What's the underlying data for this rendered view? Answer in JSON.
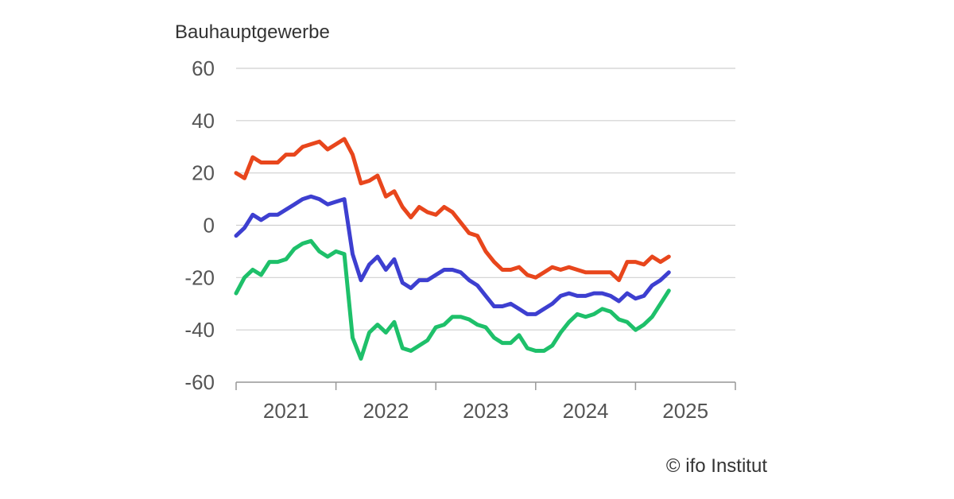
{
  "chart_data": {
    "type": "line",
    "title": "Bauhauptgewerbe",
    "xlabel": "",
    "ylabel": "",
    "ylim": [
      -60,
      60
    ],
    "yticks": [
      60,
      40,
      20,
      0,
      -20,
      -40,
      -60
    ],
    "xlim": [
      "2021-01",
      "2026-01"
    ],
    "xtick_labels": [
      "2021",
      "2022",
      "2023",
      "2024",
      "2025"
    ],
    "grid": true,
    "legend": "none",
    "series": [
      {
        "color": "#e8461c",
        "points": [
          [
            "2021-01",
            20
          ],
          [
            "2021-02",
            18
          ],
          [
            "2021-03",
            26
          ],
          [
            "2021-04",
            24
          ],
          [
            "2021-05",
            24
          ],
          [
            "2021-06",
            24
          ],
          [
            "2021-07",
            27
          ],
          [
            "2021-08",
            27
          ],
          [
            "2021-09",
            30
          ],
          [
            "2021-10",
            31
          ],
          [
            "2021-11",
            32
          ],
          [
            "2021-12",
            29
          ],
          [
            "2022-01",
            31
          ],
          [
            "2022-02",
            33
          ],
          [
            "2022-03",
            27
          ],
          [
            "2022-04",
            16
          ],
          [
            "2022-05",
            17
          ],
          [
            "2022-06",
            19
          ],
          [
            "2022-07",
            11
          ],
          [
            "2022-08",
            13
          ],
          [
            "2022-09",
            7
          ],
          [
            "2022-10",
            3
          ],
          [
            "2022-11",
            7
          ],
          [
            "2022-12",
            5
          ],
          [
            "2023-01",
            4
          ],
          [
            "2023-02",
            7
          ],
          [
            "2023-03",
            5
          ],
          [
            "2023-04",
            1
          ],
          [
            "2023-05",
            -3
          ],
          [
            "2023-06",
            -4
          ],
          [
            "2023-07",
            -10
          ],
          [
            "2023-08",
            -14
          ],
          [
            "2023-09",
            -17
          ],
          [
            "2023-10",
            -17
          ],
          [
            "2023-11",
            -16
          ],
          [
            "2023-12",
            -19
          ],
          [
            "2024-01",
            -20
          ],
          [
            "2024-02",
            -18
          ],
          [
            "2024-03",
            -16
          ],
          [
            "2024-04",
            -17
          ],
          [
            "2024-05",
            -16
          ],
          [
            "2024-06",
            -17
          ],
          [
            "2024-07",
            -18
          ],
          [
            "2024-08",
            -18
          ],
          [
            "2024-09",
            -18
          ],
          [
            "2024-10",
            -18
          ],
          [
            "2024-11",
            -21
          ],
          [
            "2024-12",
            -14
          ],
          [
            "2025-01",
            -14
          ],
          [
            "2025-02",
            -15
          ],
          [
            "2025-03",
            -12
          ],
          [
            "2025-04",
            -14
          ],
          [
            "2025-05",
            -12
          ]
        ]
      },
      {
        "color": "#3d3fd0",
        "points": [
          [
            "2021-01",
            -4
          ],
          [
            "2021-02",
            -1
          ],
          [
            "2021-03",
            4
          ],
          [
            "2021-04",
            2
          ],
          [
            "2021-05",
            4
          ],
          [
            "2021-06",
            4
          ],
          [
            "2021-07",
            6
          ],
          [
            "2021-08",
            8
          ],
          [
            "2021-09",
            10
          ],
          [
            "2021-10",
            11
          ],
          [
            "2021-11",
            10
          ],
          [
            "2021-12",
            8
          ],
          [
            "2022-01",
            9
          ],
          [
            "2022-02",
            10
          ],
          [
            "2022-03",
            -11
          ],
          [
            "2022-04",
            -21
          ],
          [
            "2022-05",
            -15
          ],
          [
            "2022-06",
            -12
          ],
          [
            "2022-07",
            -17
          ],
          [
            "2022-08",
            -13
          ],
          [
            "2022-09",
            -22
          ],
          [
            "2022-10",
            -24
          ],
          [
            "2022-11",
            -21
          ],
          [
            "2022-12",
            -21
          ],
          [
            "2023-01",
            -19
          ],
          [
            "2023-02",
            -17
          ],
          [
            "2023-03",
            -17
          ],
          [
            "2023-04",
            -18
          ],
          [
            "2023-05",
            -21
          ],
          [
            "2023-06",
            -23
          ],
          [
            "2023-07",
            -27
          ],
          [
            "2023-08",
            -31
          ],
          [
            "2023-09",
            -31
          ],
          [
            "2023-10",
            -30
          ],
          [
            "2023-11",
            -32
          ],
          [
            "2023-12",
            -34
          ],
          [
            "2024-01",
            -34
          ],
          [
            "2024-02",
            -32
          ],
          [
            "2024-03",
            -30
          ],
          [
            "2024-04",
            -27
          ],
          [
            "2024-05",
            -26
          ],
          [
            "2024-06",
            -27
          ],
          [
            "2024-07",
            -27
          ],
          [
            "2024-08",
            -26
          ],
          [
            "2024-09",
            -26
          ],
          [
            "2024-10",
            -27
          ],
          [
            "2024-11",
            -29
          ],
          [
            "2024-12",
            -26
          ],
          [
            "2025-01",
            -28
          ],
          [
            "2025-02",
            -27
          ],
          [
            "2025-03",
            -23
          ],
          [
            "2025-04",
            -21
          ],
          [
            "2025-05",
            -18
          ]
        ]
      },
      {
        "color": "#1ec06a",
        "points": [
          [
            "2021-01",
            -26
          ],
          [
            "2021-02",
            -20
          ],
          [
            "2021-03",
            -17
          ],
          [
            "2021-04",
            -19
          ],
          [
            "2021-05",
            -14
          ],
          [
            "2021-06",
            -14
          ],
          [
            "2021-07",
            -13
          ],
          [
            "2021-08",
            -9
          ],
          [
            "2021-09",
            -7
          ],
          [
            "2021-10",
            -6
          ],
          [
            "2021-11",
            -10
          ],
          [
            "2021-12",
            -12
          ],
          [
            "2022-01",
            -10
          ],
          [
            "2022-02",
            -11
          ],
          [
            "2022-03",
            -43
          ],
          [
            "2022-04",
            -51
          ],
          [
            "2022-05",
            -41
          ],
          [
            "2022-06",
            -38
          ],
          [
            "2022-07",
            -41
          ],
          [
            "2022-08",
            -37
          ],
          [
            "2022-09",
            -47
          ],
          [
            "2022-10",
            -48
          ],
          [
            "2022-11",
            -46
          ],
          [
            "2022-12",
            -44
          ],
          [
            "2023-01",
            -39
          ],
          [
            "2023-02",
            -38
          ],
          [
            "2023-03",
            -35
          ],
          [
            "2023-04",
            -35
          ],
          [
            "2023-05",
            -36
          ],
          [
            "2023-06",
            -38
          ],
          [
            "2023-07",
            -39
          ],
          [
            "2023-08",
            -43
          ],
          [
            "2023-09",
            -45
          ],
          [
            "2023-10",
            -45
          ],
          [
            "2023-11",
            -42
          ],
          [
            "2023-12",
            -47
          ],
          [
            "2024-01",
            -48
          ],
          [
            "2024-02",
            -48
          ],
          [
            "2024-03",
            -46
          ],
          [
            "2024-04",
            -41
          ],
          [
            "2024-05",
            -37
          ],
          [
            "2024-06",
            -34
          ],
          [
            "2024-07",
            -35
          ],
          [
            "2024-08",
            -34
          ],
          [
            "2024-09",
            -32
          ],
          [
            "2024-10",
            -33
          ],
          [
            "2024-11",
            -36
          ],
          [
            "2024-12",
            -37
          ],
          [
            "2025-01",
            -40
          ],
          [
            "2025-02",
            -38
          ],
          [
            "2025-03",
            -35
          ],
          [
            "2025-04",
            -30
          ],
          [
            "2025-05",
            -25
          ]
        ]
      }
    ]
  },
  "footer": {
    "credit": "© ifo Institut"
  }
}
